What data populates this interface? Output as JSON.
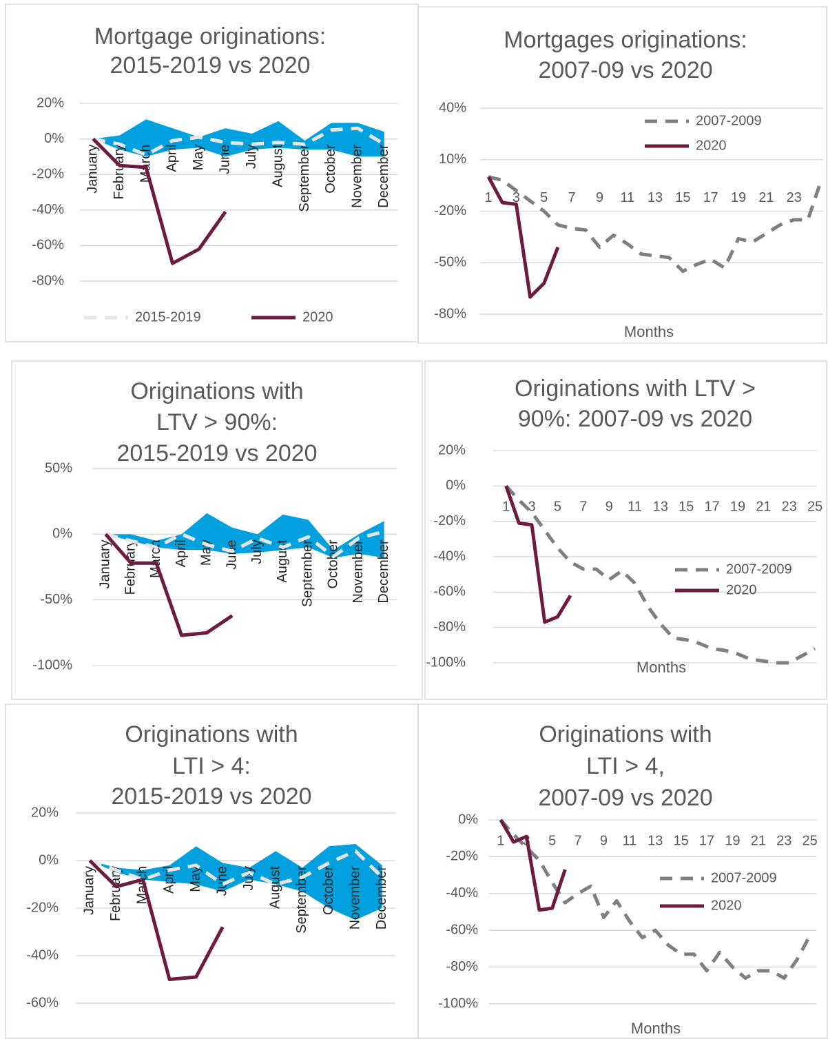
{
  "chart_data": [
    {
      "type": "band-line",
      "title": [
        "Mortgage originations:",
        "2015-2019 vs 2020"
      ],
      "categories": [
        "January",
        "February",
        "March",
        "April",
        "May",
        "June",
        "July",
        "August",
        "September",
        "October",
        "November",
        "December"
      ],
      "band": {
        "color": "#00a1de",
        "upper": [
          0,
          2,
          11,
          6,
          1,
          6,
          3,
          10,
          -1,
          9,
          9,
          4
        ],
        "lower": [
          0,
          -6,
          -10,
          -6,
          -5,
          -10,
          -6,
          -5,
          -6,
          -6,
          -10,
          -10
        ]
      },
      "series": [
        {
          "name": "2015-2019",
          "color": "#e7e6e6",
          "dash": true,
          "values": [
            0,
            -3,
            -9,
            -1,
            1,
            -2,
            -3,
            -2,
            -3,
            5,
            6,
            -3
          ]
        },
        {
          "name": "2020",
          "color": "#6d1c3f",
          "values": [
            0,
            -15,
            -16,
            -70,
            -62,
            -41,
            null,
            null,
            null,
            null,
            null,
            null
          ]
        }
      ],
      "ylim": [
        -80,
        20
      ],
      "yticks": [
        {
          "value": 20,
          "label": "20%"
        },
        {
          "value": 0,
          "label": "0%"
        },
        {
          "value": -20,
          "label": "-20%"
        },
        {
          "value": -40,
          "label": "-40%"
        },
        {
          "value": -60,
          "label": "-60%"
        },
        {
          "value": -80,
          "label": "-80%"
        }
      ],
      "grid": true,
      "legend": "bottom"
    },
    {
      "type": "line",
      "title": [
        "Mortgages originations:",
        "2007-09 vs 2020"
      ],
      "x_label": "Months",
      "x": [
        1,
        2,
        3,
        4,
        5,
        6,
        7,
        8,
        9,
        10,
        11,
        12,
        13,
        14,
        15,
        16,
        17,
        18,
        19,
        20,
        21,
        22,
        23,
        24,
        25
      ],
      "series": [
        {
          "name": "2007-2009",
          "color": "#7f7f7f",
          "dash": true,
          "values": [
            0,
            -2,
            -8,
            -14,
            -20,
            -28,
            -30,
            -31,
            -41,
            -34,
            -39,
            -45,
            -46,
            -47,
            -55,
            -51,
            -48,
            -53,
            -36,
            -38,
            -33,
            -28,
            -25,
            -25,
            -1
          ]
        },
        {
          "name": "2020",
          "color": "#6d1c3f",
          "values": [
            0,
            -15,
            -16,
            -70,
            -62,
            -41,
            null,
            null,
            null,
            null,
            null,
            null,
            null,
            null,
            null,
            null,
            null,
            null,
            null,
            null,
            null,
            null,
            null,
            null,
            null
          ]
        }
      ],
      "xlim": [
        0.4,
        25.1
      ],
      "xticks": [
        1,
        3,
        5,
        7,
        9,
        11,
        13,
        15,
        17,
        19,
        21,
        23
      ],
      "ylim": [
        -80,
        40
      ],
      "yticks": [
        {
          "value": 40,
          "label": "40%"
        },
        {
          "value": 10,
          "label": "10%"
        },
        {
          "value": -20,
          "label": "-20%"
        },
        {
          "value": -50,
          "label": "-50%"
        },
        {
          "value": -80,
          "label": "-80%"
        }
      ],
      "grid": true,
      "legend": "top-right"
    },
    {
      "type": "band-line",
      "title": [
        "Originations with",
        "LTV > 90%:",
        "2015-2019 vs 2020"
      ],
      "categories": [
        "January",
        "February",
        "March",
        "April",
        "May",
        "June",
        "July",
        "August",
        "September",
        "October",
        "November",
        "December"
      ],
      "band": {
        "color": "#00a1de",
        "upper": [
          0,
          0,
          -5,
          0,
          16,
          5,
          0,
          15,
          11,
          -12,
          0,
          10
        ],
        "lower": [
          0,
          -5,
          -10,
          -12,
          -12,
          -15,
          -14,
          -12,
          -10,
          -18,
          -15,
          -18
        ]
      },
      "series": [
        {
          "color": "#e7e6e6",
          "dash": true,
          "values": [
            0,
            -5,
            -10,
            0,
            -8,
            -13,
            -3,
            -10,
            -2,
            -17,
            -3,
            2
          ]
        },
        {
          "color": "#6d1c3f",
          "values": [
            0,
            -22,
            -22,
            -77,
            -75,
            -62,
            null,
            null,
            null,
            null,
            null,
            null
          ]
        }
      ],
      "ylim": [
        -100,
        50
      ],
      "yticks": [
        {
          "value": 50,
          "label": "50%"
        },
        {
          "value": 0,
          "label": "0%"
        },
        {
          "value": -50,
          "label": "-50%"
        },
        {
          "value": -100,
          "label": "-100%"
        }
      ],
      "grid": true
    },
    {
      "type": "line",
      "title": [
        "Originations with LTV >",
        "90%: 2007-09 vs 2020"
      ],
      "x_label": "Months",
      "x": [
        1,
        2,
        3,
        4,
        5,
        6,
        7,
        8,
        9,
        10,
        11,
        12,
        13,
        14,
        15,
        16,
        17,
        18,
        19,
        20,
        21,
        22,
        23,
        24,
        25
      ],
      "series": [
        {
          "name": "2007-2009",
          "color": "#7f7f7f",
          "dash": true,
          "values": [
            0,
            -8,
            -15,
            -25,
            -35,
            -43,
            -47,
            -47,
            -53,
            -48,
            -55,
            -68,
            -78,
            -86,
            -87,
            -89,
            -92,
            -93,
            -95,
            -98,
            -99,
            -100,
            -100,
            -96,
            -92
          ]
        },
        {
          "name": "2020",
          "color": "#6d1c3f",
          "values": [
            0,
            -21,
            -22,
            -77,
            -74,
            -62,
            null,
            null,
            null,
            null,
            null,
            null,
            null,
            null,
            null,
            null,
            null,
            null,
            null,
            null,
            null,
            null,
            null,
            null,
            null
          ]
        }
      ],
      "xlim": [
        0,
        25.1
      ],
      "xticks": [
        1,
        3,
        5,
        7,
        9,
        11,
        13,
        15,
        17,
        19,
        21,
        23,
        25
      ],
      "ylim": [
        -100,
        20
      ],
      "yticks": [
        {
          "value": 20,
          "label": "20%"
        },
        {
          "value": 0,
          "label": "0%"
        },
        {
          "value": -20,
          "label": "-20%"
        },
        {
          "value": -40,
          "label": "-40%"
        },
        {
          "value": -60,
          "label": "-60%"
        },
        {
          "value": -80,
          "label": "-80%"
        },
        {
          "value": -100,
          "label": "-100%"
        }
      ],
      "grid": true,
      "legend": "right"
    },
    {
      "type": "band-line",
      "title": [
        "Originations with",
        "LTI > 4:",
        "2015-2019 vs 2020"
      ],
      "categories": [
        "January",
        "February",
        "March",
        "April",
        "May",
        "June",
        "July",
        "August",
        "September",
        "October",
        "November",
        "December"
      ],
      "band": {
        "color": "#00a1de",
        "upper": [
          0,
          -3,
          -4,
          -2,
          6,
          -1,
          -3,
          4,
          -3,
          6,
          7,
          -2
        ],
        "lower": [
          0,
          -5,
          -8,
          -9,
          -10,
          -13,
          -8,
          -10,
          -13,
          -20,
          -25,
          -20
        ]
      },
      "series": [
        {
          "color": "#e7e6e6",
          "dash": true,
          "values": [
            0,
            -4,
            -8,
            -4,
            -2,
            -10,
            -5,
            -10,
            -7,
            -1,
            4,
            -7
          ]
        },
        {
          "color": "#6d1c3f",
          "values": [
            0,
            -11,
            -8,
            -50,
            -49,
            -28,
            null,
            null,
            null,
            null,
            null,
            null
          ]
        }
      ],
      "ylim": [
        -60,
        20
      ],
      "yticks": [
        {
          "value": 20,
          "label": "20%"
        },
        {
          "value": 0,
          "label": "0%"
        },
        {
          "value": -20,
          "label": "-20%"
        },
        {
          "value": -40,
          "label": "-40%"
        },
        {
          "value": -60,
          "label": "-60%"
        }
      ],
      "grid": true
    },
    {
      "type": "line",
      "title": [
        "Originations with",
        "LTI > 4,",
        "2007-09 vs 2020"
      ],
      "x_label": "Months",
      "x": [
        1,
        2,
        3,
        4,
        5,
        6,
        7,
        8,
        9,
        10,
        11,
        12,
        13,
        14,
        15,
        16,
        17,
        18,
        19,
        20,
        21,
        22,
        23,
        24,
        25
      ],
      "series": [
        {
          "name": "2007-2009",
          "color": "#7f7f7f",
          "dash": true,
          "values": [
            0,
            -8,
            -15,
            -22,
            -34,
            -45,
            -40,
            -36,
            -53,
            -44,
            -55,
            -64,
            -60,
            -68,
            -73,
            -73,
            -82,
            -72,
            -80,
            -86,
            -82,
            -82,
            -86,
            -76,
            -63
          ]
        },
        {
          "name": "2020",
          "color": "#6d1c3f",
          "values": [
            0,
            -12,
            -9,
            -49,
            -48,
            -27,
            null,
            null,
            null,
            null,
            null,
            null,
            null,
            null,
            null,
            null,
            null,
            null,
            null,
            null,
            null,
            null,
            null,
            null,
            null
          ]
        }
      ],
      "xlim": [
        0.1,
        25.5
      ],
      "xticks": [
        1,
        3,
        5,
        7,
        9,
        11,
        13,
        15,
        17,
        19,
        21,
        23,
        25
      ],
      "ylim": [
        -100,
        0
      ],
      "yticks": [
        {
          "value": 0,
          "label": "0%"
        },
        {
          "value": -20,
          "label": "-20%"
        },
        {
          "value": -40,
          "label": "-40%"
        },
        {
          "value": -60,
          "label": "-60%"
        },
        {
          "value": -80,
          "label": "-80%"
        },
        {
          "value": -100,
          "label": "-100%"
        }
      ],
      "grid": true,
      "legend": "right"
    }
  ]
}
